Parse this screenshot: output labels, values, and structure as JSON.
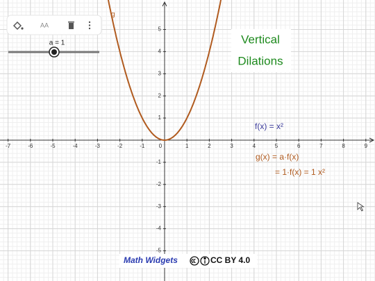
{
  "toolbar": {
    "style_label": "AA"
  },
  "slider": {
    "label": "a = 1"
  },
  "graph": {
    "xticks": [
      -7,
      -6,
      -5,
      -4,
      -3,
      -2,
      -1,
      1,
      2,
      3,
      4,
      5,
      6,
      7,
      8,
      9
    ],
    "yticks": [
      -5,
      -4,
      -3,
      -2,
      -1,
      1,
      2,
      3,
      4,
      5
    ],
    "origin_label": "0",
    "curve_label": "g"
  },
  "texts": {
    "title_line1": "Vertical",
    "title_line2": "Dilations",
    "f_def": "f(x) = x²",
    "g_def": "g(x) = a·f(x)",
    "g_eval": "= 1·f(x) = 1 x²"
  },
  "footer": {
    "brand": "Math Widgets",
    "license": "CC BY 4.0"
  }
}
